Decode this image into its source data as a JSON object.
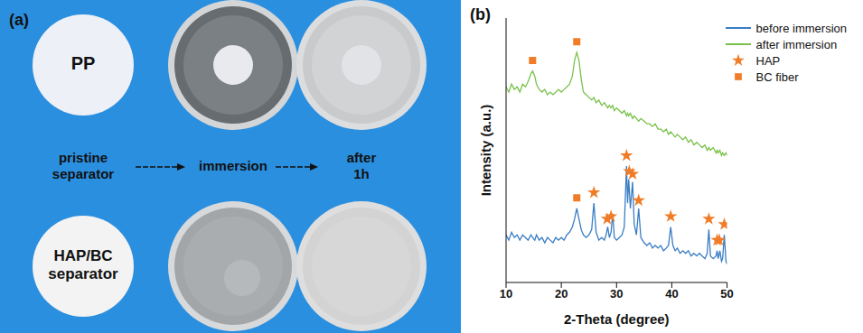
{
  "panel_a": {
    "label": "(a)",
    "rows": [
      {
        "label": "PP"
      },
      {
        "label": "HAP/BC separator"
      }
    ],
    "steps": [
      "pristine separator",
      "immersion",
      "after 1h"
    ]
  },
  "chart_data": {
    "type": "line",
    "title": "(b)",
    "x_label": "2-Theta (degree)",
    "y_label": "Intensity (a.u.)",
    "xlim": [
      10,
      50
    ],
    "xticks": [
      10,
      20,
      30,
      40,
      50
    ],
    "ylim": [
      0,
      100
    ],
    "tick_labels": "x",
    "legend": "upper right",
    "x": [
      10,
      10.5,
      11,
      11.5,
      12,
      12.5,
      13,
      13.5,
      14,
      14.5,
      14.8,
      15.2,
      15.5,
      16,
      16.5,
      17,
      17.5,
      18,
      18.5,
      19,
      19.5,
      20,
      20.5,
      21,
      21.5,
      22,
      22.4,
      22.8,
      23.2,
      23.6,
      24,
      24.5,
      25,
      25.5,
      25.9,
      26.3,
      26.8,
      27.3,
      27.8,
      28.1,
      28.4,
      28.7,
      29,
      29.3,
      29.6,
      30,
      30.5,
      31,
      31.4,
      31.8,
      32,
      32.2,
      32.5,
      32.9,
      33.2,
      33.6,
      34,
      34.4,
      35,
      35.5,
      36,
      36.5,
      37,
      37.5,
      38,
      38.5,
      39,
      39.4,
      39.8,
      40.2,
      40.6,
      41,
      41.5,
      42,
      42.5,
      43,
      43.5,
      44,
      44.5,
      45,
      45.5,
      46,
      46.4,
      46.7,
      47,
      47.5,
      48,
      48.2,
      48.4,
      48.7,
      49,
      49.2,
      49.5,
      49.8,
      50
    ],
    "series": [
      {
        "name": "before immersion",
        "type": "line",
        "color": "#3a7dc4",
        "values": [
          18,
          16,
          19,
          17,
          18,
          16,
          18,
          17,
          16,
          18,
          17,
          16,
          18,
          16,
          17,
          15,
          17,
          16,
          15,
          17,
          16,
          17,
          16,
          18,
          19,
          21,
          24,
          28,
          24,
          20,
          18,
          17,
          18,
          20,
          30,
          19,
          16,
          17,
          16,
          18,
          21,
          17,
          19,
          26,
          17,
          16,
          17,
          18,
          21,
          44,
          30,
          39,
          28,
          38,
          22,
          18,
          28,
          17,
          15,
          14,
          15,
          13,
          14,
          13,
          14,
          12,
          13,
          14,
          21,
          14,
          12,
          13,
          11,
          12,
          11,
          12,
          10,
          11,
          10,
          11,
          10,
          9,
          11,
          20,
          10,
          9,
          10,
          12,
          9,
          12,
          8,
          9,
          18,
          8,
          7
        ]
      },
      {
        "name": "after immersion",
        "type": "line",
        "color": "#79c24a",
        "values": [
          74,
          72,
          75,
          73,
          74,
          72,
          75,
          74,
          76,
          79,
          80,
          78,
          75,
          73,
          72,
          73,
          71,
          72,
          71,
          72,
          73,
          72,
          73,
          74,
          75,
          78,
          84,
          87,
          84,
          77,
          72,
          71,
          70,
          69,
          70,
          68,
          69,
          67,
          68,
          67,
          66,
          67,
          66,
          67,
          65,
          66,
          65,
          64,
          65,
          63,
          64,
          63,
          64,
          62,
          63,
          62,
          61,
          62,
          61,
          60,
          60,
          59,
          60,
          58,
          58,
          57,
          58,
          56,
          57,
          56,
          55,
          56,
          55,
          54,
          55,
          53,
          54,
          52,
          53,
          52,
          51,
          52,
          50,
          51,
          50,
          51,
          49,
          50,
          49,
          50,
          48,
          49,
          48,
          49,
          48
        ]
      },
      {
        "name": "HAP",
        "type": "scatter",
        "marker": "star",
        "color": "#f07c28",
        "x": [
          25.9,
          28.3,
          29.0,
          31.8,
          32.3,
          32.9,
          34.0,
          39.8,
          46.7,
          48.2,
          48.6,
          49.5
        ],
        "values": [
          34,
          24,
          25,
          48,
          42,
          41,
          31,
          25,
          24,
          16,
          16,
          22
        ]
      },
      {
        "name": "BC fiber",
        "type": "scatter",
        "marker": "square",
        "color": "#f07c28",
        "x": [
          22.8,
          14.8,
          22.8
        ],
        "values": [
          32,
          84,
          91
        ]
      }
    ]
  }
}
